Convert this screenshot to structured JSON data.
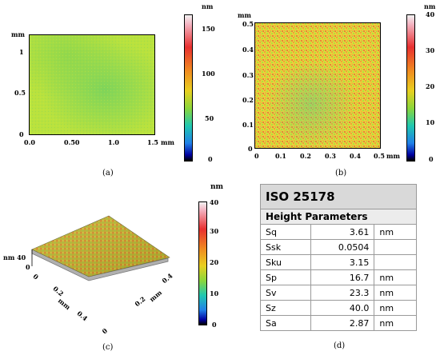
{
  "panel_a": {
    "unit_y": "mm",
    "unit_x": "mm",
    "unit_bar": "nm",
    "x_ticks": [
      "0.0",
      "0.50",
      "1.0",
      "1.5"
    ],
    "y_ticks": [
      "1",
      "0.5",
      "0"
    ],
    "bar_ticks": [
      "150",
      "100",
      "50",
      "0"
    ],
    "caption": "(a)"
  },
  "panel_b": {
    "unit_y": "mm",
    "unit_x": "mm",
    "unit_bar": "nm",
    "x_ticks": [
      "0",
      "0.1",
      "0.2",
      "0.3",
      "0.4",
      "0.5"
    ],
    "y_ticks": [
      "0.5",
      "0.4",
      "0.3",
      "0.2",
      "0.1",
      "0"
    ],
    "bar_ticks": [
      "40",
      "30",
      "20",
      "10",
      "0"
    ],
    "caption": "(b)"
  },
  "panel_c": {
    "unit_bar": "nm",
    "z_label": "nm 40",
    "z_zero": "0",
    "left_axis": [
      "0",
      "0.2",
      "mm",
      "0.4"
    ],
    "right_axis": [
      "0",
      "0.2",
      "mm",
      "0.4"
    ],
    "bar_ticks": [
      "40",
      "30",
      "20",
      "10",
      "0"
    ],
    "caption": "(c)"
  },
  "panel_d": {
    "title": "ISO 25178",
    "subtitle": "Height Parameters",
    "rows": [
      {
        "name": "Sq",
        "value": "3.61",
        "unit": "nm"
      },
      {
        "name": "Ssk",
        "value": "0.0504",
        "unit": ""
      },
      {
        "name": "Sku",
        "value": "3.15",
        "unit": ""
      },
      {
        "name": "Sp",
        "value": "16.7",
        "unit": "nm"
      },
      {
        "name": "Sv",
        "value": "23.3",
        "unit": "nm"
      },
      {
        "name": "Sz",
        "value": "40.0",
        "unit": "nm"
      },
      {
        "name": "Sa",
        "value": "2.87",
        "unit": "nm"
      }
    ],
    "caption": "(d)"
  },
  "colors": {
    "map_green": "#9fdc3a",
    "map_yellow": "#e2e63a",
    "map_orange": "#f0a43a",
    "table_header": "#d9d9d9"
  }
}
